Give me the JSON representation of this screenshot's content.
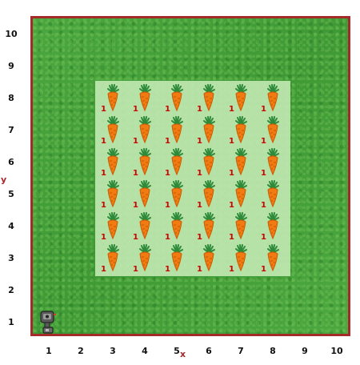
{
  "grid": {
    "cols": 10,
    "rows": 10,
    "x_label": "x",
    "y_label": "y",
    "x_ticks": [
      "1",
      "2",
      "3",
      "4",
      "5",
      "6",
      "7",
      "8",
      "9",
      "10"
    ],
    "y_ticks": [
      "1",
      "2",
      "3",
      "4",
      "5",
      "6",
      "7",
      "8",
      "9",
      "10"
    ],
    "border_color": "#a52a2a",
    "grass_color": "#48a23c",
    "planted_color": "#bfe7b0"
  },
  "planted_area": {
    "x_from": 3,
    "x_to": 8,
    "y_from": 3,
    "y_to": 8
  },
  "robot": {
    "x": 1,
    "y": 1,
    "icon": "robot-icon"
  },
  "carrots": [
    {
      "x": 3,
      "y": 3,
      "count": "1"
    },
    {
      "x": 4,
      "y": 3,
      "count": "1"
    },
    {
      "x": 5,
      "y": 3,
      "count": "1"
    },
    {
      "x": 6,
      "y": 3,
      "count": "1"
    },
    {
      "x": 7,
      "y": 3,
      "count": "1"
    },
    {
      "x": 8,
      "y": 3,
      "count": "1"
    },
    {
      "x": 3,
      "y": 4,
      "count": "1"
    },
    {
      "x": 4,
      "y": 4,
      "count": "1"
    },
    {
      "x": 5,
      "y": 4,
      "count": "1"
    },
    {
      "x": 6,
      "y": 4,
      "count": "1"
    },
    {
      "x": 7,
      "y": 4,
      "count": "1"
    },
    {
      "x": 8,
      "y": 4,
      "count": "1"
    },
    {
      "x": 3,
      "y": 5,
      "count": "1"
    },
    {
      "x": 4,
      "y": 5,
      "count": "1"
    },
    {
      "x": 5,
      "y": 5,
      "count": "1"
    },
    {
      "x": 6,
      "y": 5,
      "count": "1"
    },
    {
      "x": 7,
      "y": 5,
      "count": "1"
    },
    {
      "x": 8,
      "y": 5,
      "count": "1"
    },
    {
      "x": 3,
      "y": 6,
      "count": "1"
    },
    {
      "x": 4,
      "y": 6,
      "count": "1"
    },
    {
      "x": 5,
      "y": 6,
      "count": "1"
    },
    {
      "x": 6,
      "y": 6,
      "count": "1"
    },
    {
      "x": 7,
      "y": 6,
      "count": "1"
    },
    {
      "x": 8,
      "y": 6,
      "count": "1"
    },
    {
      "x": 3,
      "y": 7,
      "count": "1"
    },
    {
      "x": 4,
      "y": 7,
      "count": "1"
    },
    {
      "x": 5,
      "y": 7,
      "count": "1"
    },
    {
      "x": 6,
      "y": 7,
      "count": "1"
    },
    {
      "x": 7,
      "y": 7,
      "count": "1"
    },
    {
      "x": 8,
      "y": 7,
      "count": "1"
    },
    {
      "x": 3,
      "y": 8,
      "count": "1"
    },
    {
      "x": 4,
      "y": 8,
      "count": "1"
    },
    {
      "x": 5,
      "y": 8,
      "count": "1"
    },
    {
      "x": 6,
      "y": 8,
      "count": "1"
    },
    {
      "x": 7,
      "y": 8,
      "count": "1"
    },
    {
      "x": 8,
      "y": 8,
      "count": "1"
    }
  ]
}
